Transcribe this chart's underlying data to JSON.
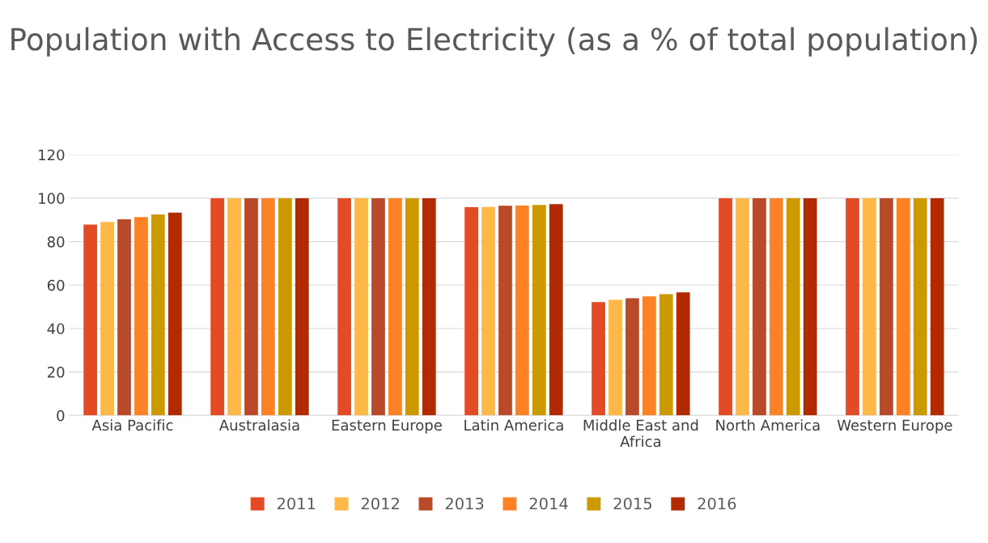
{
  "chart_data": {
    "type": "bar",
    "title": "Population with Access to Electricity (as a % of total population)",
    "categories": [
      "Asia Pacific",
      "Australasia",
      "Eastern Europe",
      "Latin America",
      "Middle East and Africa",
      "North America",
      "Western Europe"
    ],
    "series": [
      {
        "name": "2011",
        "color": "#e34a26",
        "values": [
          87.9,
          100,
          100,
          95.9,
          52.2,
          100,
          100
        ]
      },
      {
        "name": "2012",
        "color": "#fdb848",
        "values": [
          89.1,
          100,
          100,
          96.0,
          53.2,
          100,
          100
        ]
      },
      {
        "name": "2013",
        "color": "#b84a2a",
        "values": [
          90.3,
          100,
          100,
          96.5,
          54.0,
          100,
          100
        ]
      },
      {
        "name": "2014",
        "color": "#fd8226",
        "values": [
          91.3,
          100,
          100,
          96.6,
          54.8,
          100,
          100
        ]
      },
      {
        "name": "2015",
        "color": "#cc9a00",
        "values": [
          92.5,
          100,
          100,
          96.9,
          55.8,
          100,
          100
        ]
      },
      {
        "name": "2016",
        "color": "#b22a00",
        "values": [
          93.4,
          100,
          100,
          97.3,
          56.7,
          100,
          100
        ]
      }
    ],
    "ylim": [
      0,
      120
    ],
    "yticks": [
      0,
      20,
      40,
      60,
      80,
      100,
      120
    ],
    "grid": "y",
    "legend": "bottom"
  }
}
